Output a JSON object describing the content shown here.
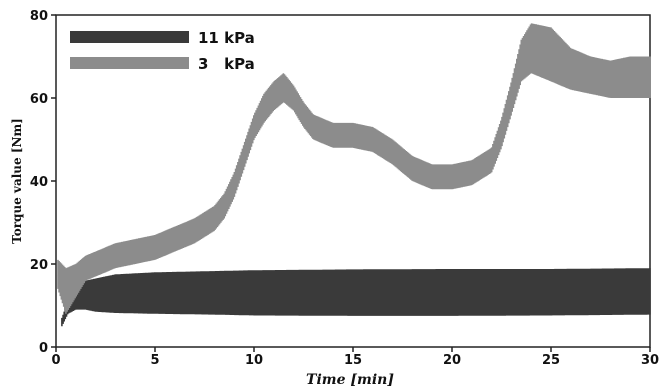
{
  "chart_data": {
    "type": "area",
    "title": "",
    "xlabel": "Time [min]",
    "ylabel": "Torque value [Nm]",
    "xlim": [
      0,
      30
    ],
    "ylim": [
      0,
      80
    ],
    "x_ticks": [
      "0",
      "5",
      "10",
      "15",
      "20",
      "25",
      "30"
    ],
    "y_ticks": [
      "0",
      "20",
      "40",
      "60",
      "80"
    ],
    "grid": false,
    "legend_position": "top-left",
    "series": [
      {
        "name": "11 kPa",
        "color": "#3a3a3a",
        "x": [
          0.3,
          0.6,
          1.0,
          1.5,
          2,
          3,
          5,
          8,
          10,
          15,
          20,
          25,
          30
        ],
        "lower": [
          5,
          8,
          9,
          9,
          8.5,
          8.2,
          8,
          7.8,
          7.6,
          7.5,
          7.5,
          7.6,
          7.8
        ],
        "upper": [
          7,
          11,
          14,
          16,
          16.5,
          17.5,
          18,
          18.3,
          18.5,
          18.7,
          18.8,
          18.8,
          19
        ]
      },
      {
        "name": "3   kPa",
        "color": "#8c8c8c",
        "x": [
          0.1,
          0.5,
          1.0,
          1.5,
          2.0,
          3.0,
          4.0,
          5.0,
          6.0,
          7.0,
          8.0,
          8.5,
          9.0,
          9.5,
          10.0,
          10.5,
          11.0,
          11.5,
          12.0,
          12.5,
          13.0,
          14.0,
          15.0,
          16.0,
          17.0,
          18.0,
          19.0,
          20.0,
          21.0,
          22.0,
          22.5,
          23.0,
          23.5,
          24.0,
          25.0,
          26.0,
          27.0,
          28.0,
          29.0,
          30.0
        ],
        "lower": [
          14,
          8,
          12,
          16,
          17,
          19,
          20,
          21,
          23,
          25,
          28,
          31,
          36,
          43,
          50,
          54,
          57,
          59,
          57,
          53,
          50,
          48,
          48,
          47,
          44,
          40,
          38,
          38,
          39,
          42,
          48,
          56,
          64,
          66,
          64,
          62,
          61,
          60,
          60,
          60
        ],
        "upper": [
          21,
          19,
          20,
          22,
          23,
          25,
          26,
          27,
          29,
          31,
          34,
          37,
          42,
          49,
          56,
          61,
          64,
          66,
          63,
          59,
          56,
          54,
          54,
          53,
          50,
          46,
          44,
          44,
          45,
          48,
          55,
          64,
          74,
          78,
          77,
          72,
          70,
          69,
          70,
          70
        ]
      }
    ]
  }
}
